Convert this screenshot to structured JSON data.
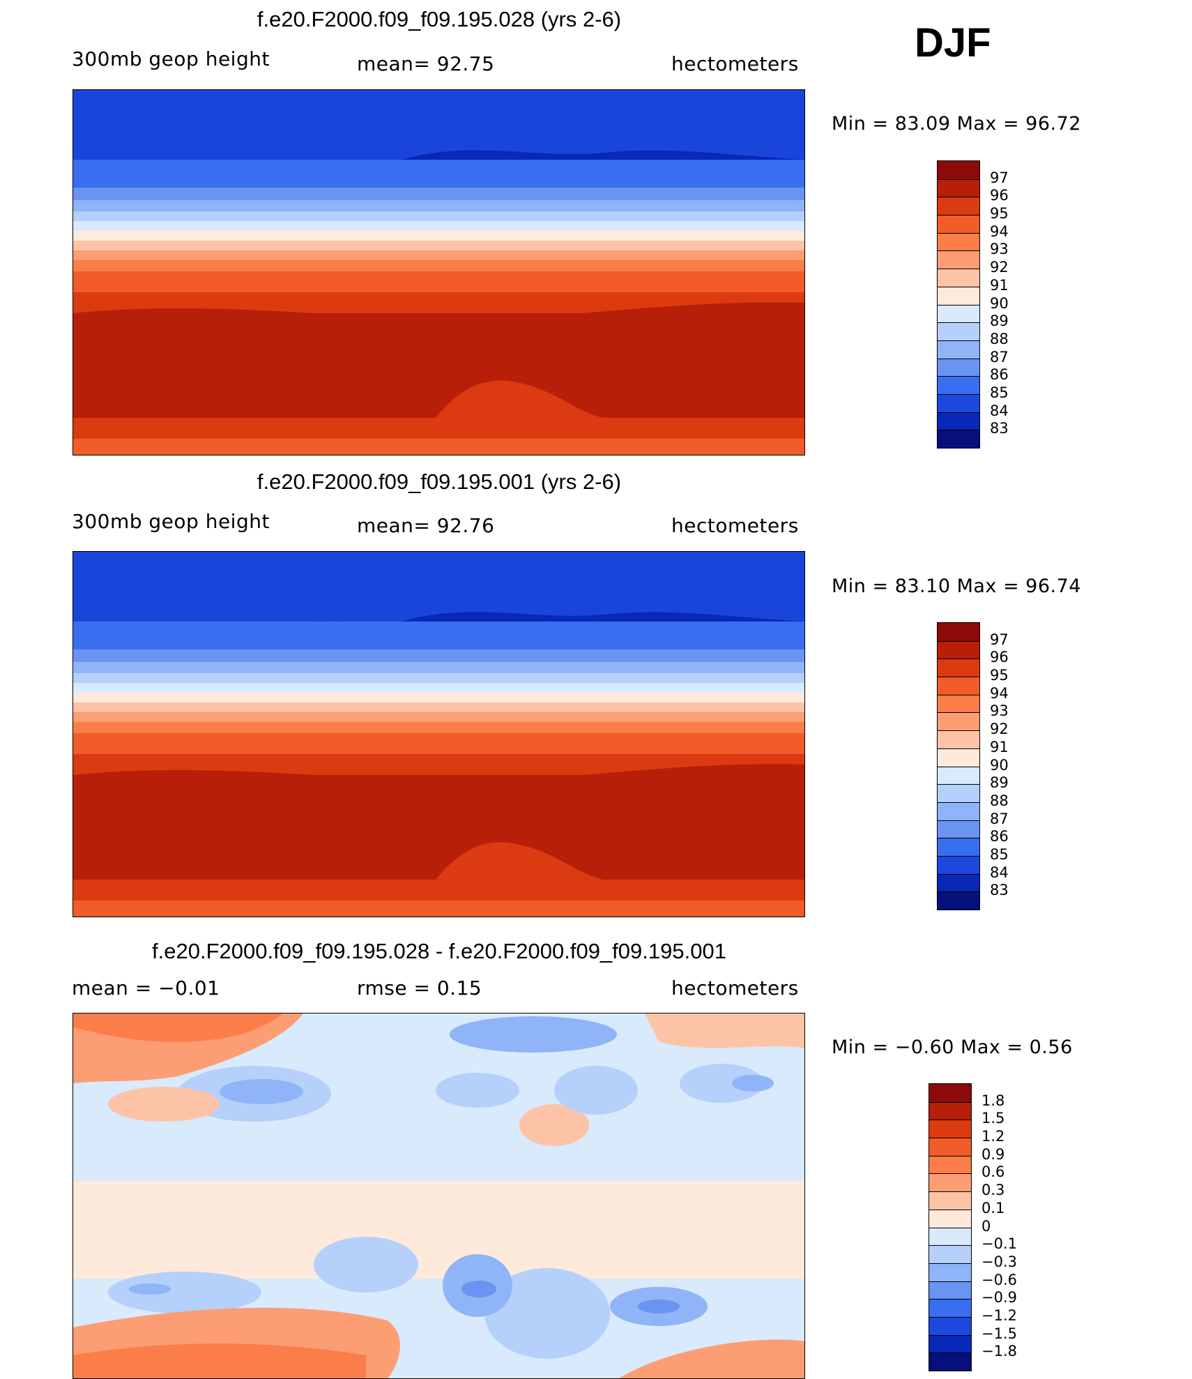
{
  "season": "DJF",
  "panels": [
    {
      "title": "f.e20.F2000.f09_f09.195.028 (yrs 2-6)",
      "left_label": "300mb  geop  height",
      "mid_label": "mean=   92.75",
      "right_label": "hectometers",
      "minmax": "Min  =    83.09  Max  =    96.72",
      "colorbar_labels": [
        "97",
        "96",
        "95",
        "94",
        "93",
        "92",
        "91",
        "90",
        "89",
        "88",
        "87",
        "86",
        "85",
        "84",
        "83"
      ],
      "colorbar_colors": [
        "#8c0a0a",
        "#b81f08",
        "#dc3a10",
        "#f25c28",
        "#fb7d4a",
        "#fc9d74",
        "#fdc3a6",
        "#feeadb",
        "#d8eafc",
        "#b5d0fa",
        "#8fb4f7",
        "#6a94f2",
        "#3a6ef0",
        "#1c48df",
        "#0828b8",
        "#05107a"
      ],
      "chart_data": {
        "type": "heatmap",
        "title": "f.e20.F2000.f09_f09.195.028 (yrs 2-6)",
        "variable": "300mb geop height",
        "units": "hectometers",
        "mean": 92.75,
        "min": 83.09,
        "max": 96.72,
        "contour_levels": [
          83,
          84,
          85,
          86,
          87,
          88,
          89,
          90,
          91,
          92,
          93,
          94,
          95,
          96,
          97
        ]
      }
    },
    {
      "title": "f.e20.F2000.f09_f09.195.001 (yrs 2-6)",
      "left_label": "300mb  geop  height",
      "mid_label": "mean=   92.76",
      "right_label": "hectometers",
      "minmax": "Min  =    83.10  Max  =    96.74",
      "colorbar_labels": [
        "97",
        "96",
        "95",
        "94",
        "93",
        "92",
        "91",
        "90",
        "89",
        "88",
        "87",
        "86",
        "85",
        "84",
        "83"
      ],
      "colorbar_colors": [
        "#8c0a0a",
        "#b81f08",
        "#dc3a10",
        "#f25c28",
        "#fb7d4a",
        "#fc9d74",
        "#fdc3a6",
        "#feeadb",
        "#d8eafc",
        "#b5d0fa",
        "#8fb4f7",
        "#6a94f2",
        "#3a6ef0",
        "#1c48df",
        "#0828b8",
        "#05107a"
      ],
      "chart_data": {
        "type": "heatmap",
        "title": "f.e20.F2000.f09_f09.195.001 (yrs 2-6)",
        "variable": "300mb geop height",
        "units": "hectometers",
        "mean": 92.76,
        "min": 83.1,
        "max": 96.74,
        "contour_levels": [
          83,
          84,
          85,
          86,
          87,
          88,
          89,
          90,
          91,
          92,
          93,
          94,
          95,
          96,
          97
        ]
      }
    },
    {
      "title": "f.e20.F2000.f09_f09.195.028 - f.e20.F2000.f09_f09.195.001",
      "left_label": "mean  =    −0.01",
      "mid_label": "rmse  =     0.15",
      "right_label": "hectometers",
      "minmax": "Min  =    −0.60  Max  =      0.56",
      "colorbar_labels": [
        "1.8",
        "1.5",
        "1.2",
        "0.9",
        "0.6",
        "0.3",
        "0.1",
        "0",
        "−0.1",
        "−0.3",
        "−0.6",
        "−0.9",
        "−1.2",
        "−1.5",
        "−1.8"
      ],
      "colorbar_colors": [
        "#8c0a0a",
        "#b81f08",
        "#dc3a10",
        "#f25c28",
        "#fb7d4a",
        "#fc9d74",
        "#fdc3a6",
        "#feeadb",
        "#d8eafc",
        "#b5d0fa",
        "#8fb4f7",
        "#6a94f2",
        "#3a6ef0",
        "#1c48df",
        "#0828b8",
        "#05107a"
      ],
      "chart_data": {
        "type": "heatmap",
        "title": "f.e20.F2000.f09_f09.195.028 - f.e20.F2000.f09_f09.195.001",
        "units": "hectometers",
        "mean": -0.01,
        "rmse": 0.15,
        "min": -0.6,
        "max": 0.56,
        "contour_levels": [
          -1.8,
          -1.5,
          -1.2,
          -0.9,
          -0.6,
          -0.3,
          -0.1,
          0,
          0.1,
          0.3,
          0.6,
          0.9,
          1.2,
          1.5,
          1.8
        ]
      }
    }
  ]
}
